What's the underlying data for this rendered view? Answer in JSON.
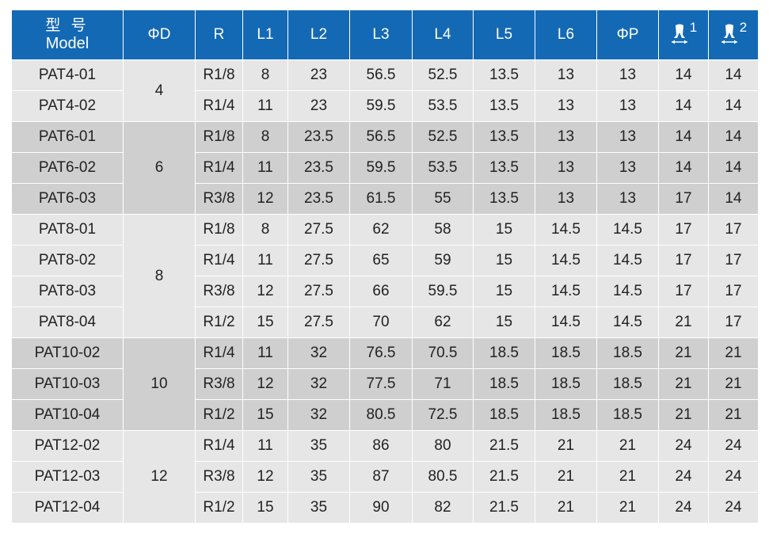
{
  "header": {
    "model_cn": "型 号",
    "model_en": "Model",
    "phi_d": "ΦD",
    "r": "R",
    "l1": "L1",
    "l2": "L2",
    "l3": "L3",
    "l4": "L4",
    "l5": "L5",
    "l6": "L6",
    "phi_p": "ΦP",
    "wrench1_num": "1",
    "wrench2_num": "2",
    "wrench1_icon": "wrench-jaw-icon",
    "wrench2_icon": "wrench-jaw-icon"
  },
  "groups": [
    {
      "d": "4",
      "rows": [
        {
          "model": "PAT4-01",
          "r": "R1/8",
          "l1": "8",
          "l2": "23",
          "l3": "56.5",
          "l4": "52.5",
          "l5": "13.5",
          "l6": "13",
          "p": "13",
          "w1": "14",
          "w2": "14"
        },
        {
          "model": "PAT4-02",
          "r": "R1/4",
          "l1": "11",
          "l2": "23",
          "l3": "59.5",
          "l4": "53.5",
          "l5": "13.5",
          "l6": "13",
          "p": "13",
          "w1": "14",
          "w2": "14"
        }
      ]
    },
    {
      "d": "6",
      "rows": [
        {
          "model": "PAT6-01",
          "r": "R1/8",
          "l1": "8",
          "l2": "23.5",
          "l3": "56.5",
          "l4": "52.5",
          "l5": "13.5",
          "l6": "13",
          "p": "13",
          "w1": "14",
          "w2": "14"
        },
        {
          "model": "PAT6-02",
          "r": "R1/4",
          "l1": "11",
          "l2": "23.5",
          "l3": "59.5",
          "l4": "53.5",
          "l5": "13.5",
          "l6": "13",
          "p": "13",
          "w1": "14",
          "w2": "14"
        },
        {
          "model": "PAT6-03",
          "r": "R3/8",
          "l1": "12",
          "l2": "23.5",
          "l3": "61.5",
          "l4": "55",
          "l5": "13.5",
          "l6": "13",
          "p": "13",
          "w1": "17",
          "w2": "14"
        }
      ]
    },
    {
      "d": "8",
      "rows": [
        {
          "model": "PAT8-01",
          "r": "R1/8",
          "l1": "8",
          "l2": "27.5",
          "l3": "62",
          "l4": "58",
          "l5": "15",
          "l6": "14.5",
          "p": "14.5",
          "w1": "17",
          "w2": "17"
        },
        {
          "model": "PAT8-02",
          "r": "R1/4",
          "l1": "11",
          "l2": "27.5",
          "l3": "65",
          "l4": "59",
          "l5": "15",
          "l6": "14.5",
          "p": "14.5",
          "w1": "17",
          "w2": "17"
        },
        {
          "model": "PAT8-03",
          "r": "R3/8",
          "l1": "12",
          "l2": "27.5",
          "l3": "66",
          "l4": "59.5",
          "l5": "15",
          "l6": "14.5",
          "p": "14.5",
          "w1": "17",
          "w2": "17"
        },
        {
          "model": "PAT8-04",
          "r": "R1/2",
          "l1": "15",
          "l2": "27.5",
          "l3": "70",
          "l4": "62",
          "l5": "15",
          "l6": "14.5",
          "p": "14.5",
          "w1": "21",
          "w2": "17"
        }
      ]
    },
    {
      "d": "10",
      "rows": [
        {
          "model": "PAT10-02",
          "r": "R1/4",
          "l1": "11",
          "l2": "32",
          "l3": "76.5",
          "l4": "70.5",
          "l5": "18.5",
          "l6": "18.5",
          "p": "18.5",
          "w1": "21",
          "w2": "21"
        },
        {
          "model": "PAT10-03",
          "r": "R3/8",
          "l1": "12",
          "l2": "32",
          "l3": "77.5",
          "l4": "71",
          "l5": "18.5",
          "l6": "18.5",
          "p": "18.5",
          "w1": "21",
          "w2": "21"
        },
        {
          "model": "PAT10-04",
          "r": "R1/2",
          "l1": "15",
          "l2": "32",
          "l3": "80.5",
          "l4": "72.5",
          "l5": "18.5",
          "l6": "18.5",
          "p": "18.5",
          "w1": "21",
          "w2": "21"
        }
      ]
    },
    {
      "d": "12",
      "rows": [
        {
          "model": "PAT12-02",
          "r": "R1/4",
          "l1": "11",
          "l2": "35",
          "l3": "86",
          "l4": "80",
          "l5": "21.5",
          "l6": "21",
          "p": "21",
          "w1": "24",
          "w2": "24"
        },
        {
          "model": "PAT12-03",
          "r": "R3/8",
          "l1": "12",
          "l2": "35",
          "l3": "87",
          "l4": "80.5",
          "l5": "21.5",
          "l6": "21",
          "p": "21",
          "w1": "24",
          "w2": "24"
        },
        {
          "model": "PAT12-04",
          "r": "R1/2",
          "l1": "15",
          "l2": "35",
          "l3": "90",
          "l4": "82",
          "l5": "21.5",
          "l6": "21",
          "p": "21",
          "w1": "24",
          "w2": "24"
        }
      ]
    }
  ],
  "colors": {
    "header_bg": "#1469b5",
    "row_light": "#e6e6e6",
    "row_dark": "#cfcfcf"
  }
}
